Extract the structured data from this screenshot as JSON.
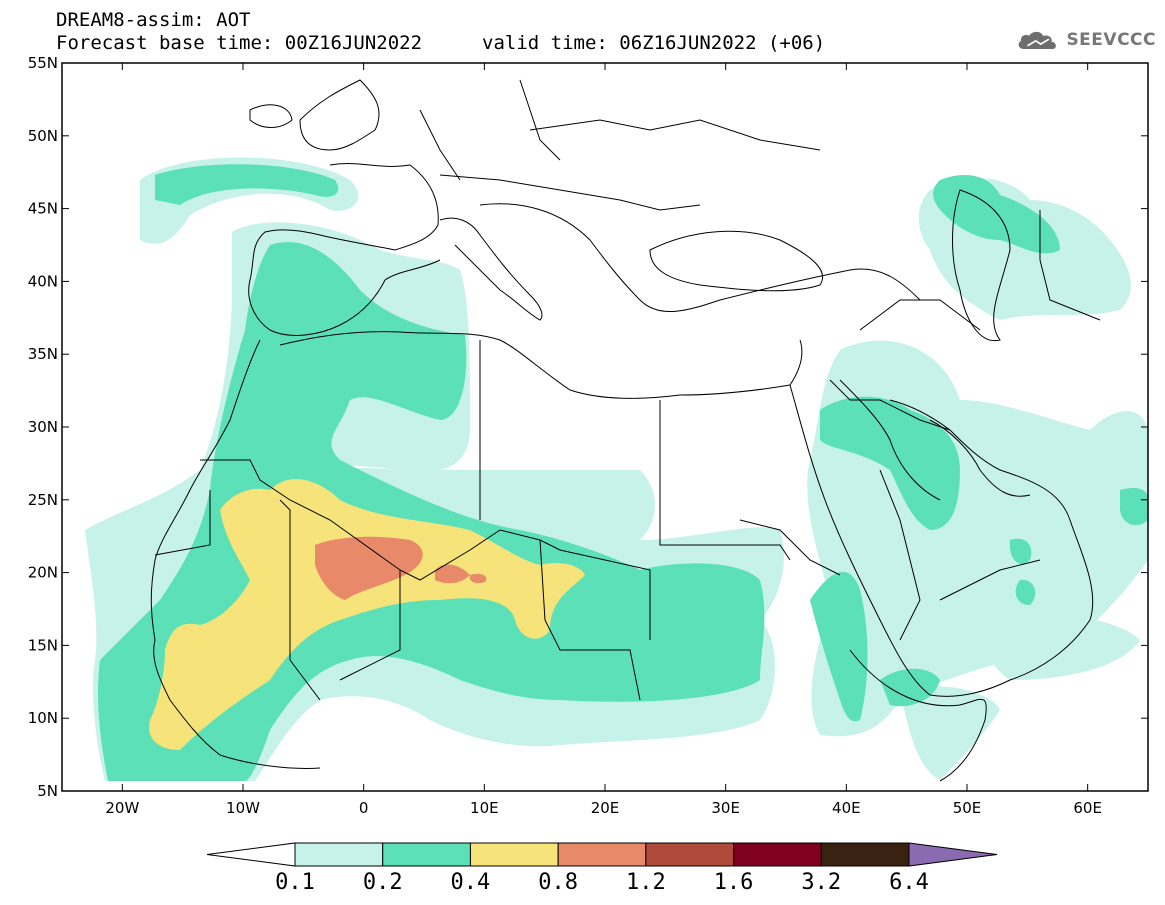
{
  "header": {
    "line1": "DREAM8-assim: AOT",
    "line2": "Forecast base time: 00Z16JUN2022",
    "valid": "valid time: 06Z16JUN2022 (+06)",
    "logo": "SEEVCCC"
  },
  "map": {
    "lon_range": [
      -25,
      65
    ],
    "lat_range": [
      5,
      55
    ],
    "lat_labels": [
      "55N",
      "50N",
      "45N",
      "40N",
      "35N",
      "30N",
      "25N",
      "20N",
      "15N",
      "10N",
      "5N"
    ],
    "lon_labels": [
      "20W",
      "10W",
      "0",
      "10E",
      "20E",
      "30E",
      "40E",
      "50E",
      "60E"
    ]
  },
  "colorbar": {
    "labels": [
      "0.1",
      "0.2",
      "0.4",
      "0.8",
      "1.2",
      "1.6",
      "3.2",
      "6.4"
    ],
    "colors": [
      "#ffffff",
      "#c6f2ea",
      "#5ce0b8",
      "#f6e37a",
      "#e8896a",
      "#b04a3a",
      "#800020",
      "#3a2212",
      "#8a6ab0"
    ]
  }
}
